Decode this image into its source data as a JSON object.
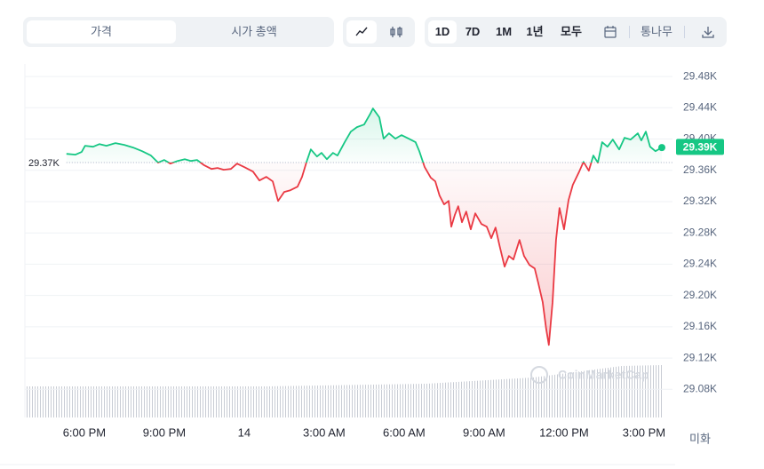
{
  "toolbar": {
    "tabs": [
      "가격",
      "시가 총액"
    ],
    "ranges": [
      "1D",
      "7D",
      "1M",
      "1년",
      "모두"
    ],
    "log_label": "통나무"
  },
  "chart_data": {
    "type": "line",
    "x": [
      17.33,
      17.67,
      17.9,
      18.03,
      18.33,
      18.57,
      18.83,
      19.17,
      19.5,
      19.83,
      20.17,
      20.5,
      20.77,
      21,
      21.23,
      21.5,
      21.77,
      22,
      22.23,
      22.5,
      22.77,
      23,
      23.23,
      23.5,
      23.73,
      24,
      24.33,
      24.57,
      24.83,
      25.07,
      25.27,
      25.5,
      25.73,
      26,
      26.17,
      26.33,
      26.5,
      26.73,
      26.9,
      27.1,
      27.33,
      27.5,
      27.77,
      28,
      28.23,
      28.5,
      28.73,
      28.83,
      29.07,
      29.23,
      29.43,
      29.67,
      29.9,
      30.17,
      30.43,
      30.57,
      30.77,
      31,
      31.17,
      31.33,
      31.5,
      31.67,
      31.77,
      31.9,
      32.03,
      32.17,
      32.33,
      32.5,
      32.67,
      32.9,
      33.1,
      33.27,
      33.43,
      33.57,
      33.77,
      33.93,
      34.1,
      34.33,
      34.5,
      34.7,
      34.9,
      35.03,
      35.2,
      35.33,
      35.43,
      35.57,
      35.7,
      35.83,
      36,
      36.17,
      36.33,
      36.57,
      36.73,
      36.93,
      37.1,
      37.27,
      37.43,
      37.63,
      37.83,
      38.07,
      38.27,
      38.5,
      38.77,
      38.9,
      39.07,
      39.23,
      39.43,
      39.67
    ],
    "values": [
      29.3811,
      29.38,
      29.3834,
      29.3914,
      29.3902,
      29.3936,
      29.3914,
      29.3948,
      29.3925,
      29.3891,
      29.3845,
      29.3789,
      29.3698,
      29.3732,
      29.3686,
      29.372,
      29.3743,
      29.372,
      29.3732,
      29.3664,
      29.3618,
      29.363,
      29.3607,
      29.3618,
      29.3686,
      29.3641,
      29.3584,
      29.347,
      29.3516,
      29.3459,
      29.3209,
      29.3323,
      29.3345,
      29.3391,
      29.3516,
      29.3698,
      29.3868,
      29.3777,
      29.3823,
      29.3743,
      29.3823,
      29.3789,
      29.3959,
      29.4095,
      29.4152,
      29.4186,
      29.4323,
      29.4391,
      29.4277,
      29.4005,
      29.4073,
      29.4005,
      29.405,
      29.4005,
      29.3959,
      29.3845,
      29.3641,
      29.3505,
      29.3459,
      29.3277,
      29.3164,
      29.3209,
      29.288,
      29.3027,
      29.3141,
      29.2936,
      29.3073,
      29.2845,
      29.305,
      29.2914,
      29.288,
      29.2732,
      29.2868,
      29.2652,
      29.2368,
      29.2505,
      29.2459,
      29.2709,
      29.2505,
      29.2391,
      29.2345,
      29.2164,
      29.1914,
      29.1573,
      29.1368,
      29.1914,
      29.2709,
      29.3118,
      29.2845,
      29.322,
      29.3414,
      29.3584,
      29.3709,
      29.3595,
      29.3789,
      29.3698,
      29.3959,
      29.3902,
      29.3993,
      29.3868,
      29.4016,
      29.3993,
      29.4073,
      29.3982,
      29.4095,
      29.3902,
      29.3845,
      29.3891
    ],
    "color_up": "#16c784",
    "color_down": "#ea3943",
    "baseline": {
      "value": 29.37,
      "label": "29.37K"
    },
    "current": {
      "value": 29.39,
      "label": "29.39K"
    },
    "xlim": [
      15.77,
      40.07
    ],
    "xticks": [
      {
        "value": 18,
        "label": "6:00 PM"
      },
      {
        "value": 21,
        "label": "9:00 PM"
      },
      {
        "value": 24,
        "label": "14"
      },
      {
        "value": 27,
        "label": "3:00 AM"
      },
      {
        "value": 30,
        "label": "6:00 AM"
      },
      {
        "value": 33,
        "label": "9:00 AM"
      },
      {
        "value": 36,
        "label": "12:00 PM"
      },
      {
        "value": 39,
        "label": "3:00 PM"
      }
    ],
    "ylim": [
      29.044,
      29.496
    ],
    "yticks": [
      {
        "value": 29.08,
        "label": "29.08K"
      },
      {
        "value": 29.12,
        "label": "29.12K"
      },
      {
        "value": 29.16,
        "label": "29.16K"
      },
      {
        "value": 29.2,
        "label": "29.20K"
      },
      {
        "value": 29.24,
        "label": "29.24K"
      },
      {
        "value": 29.28,
        "label": "29.28K"
      },
      {
        "value": 29.32,
        "label": "29.32K"
      },
      {
        "value": 29.36,
        "label": "29.36K"
      },
      {
        "value": 29.4,
        "label": "29.40K"
      },
      {
        "value": 29.44,
        "label": "29.44K"
      },
      {
        "value": 29.48,
        "label": "29.48K"
      }
    ],
    "grid": true,
    "unit_label": "미화",
    "watermark": "CoinMarketCap"
  }
}
